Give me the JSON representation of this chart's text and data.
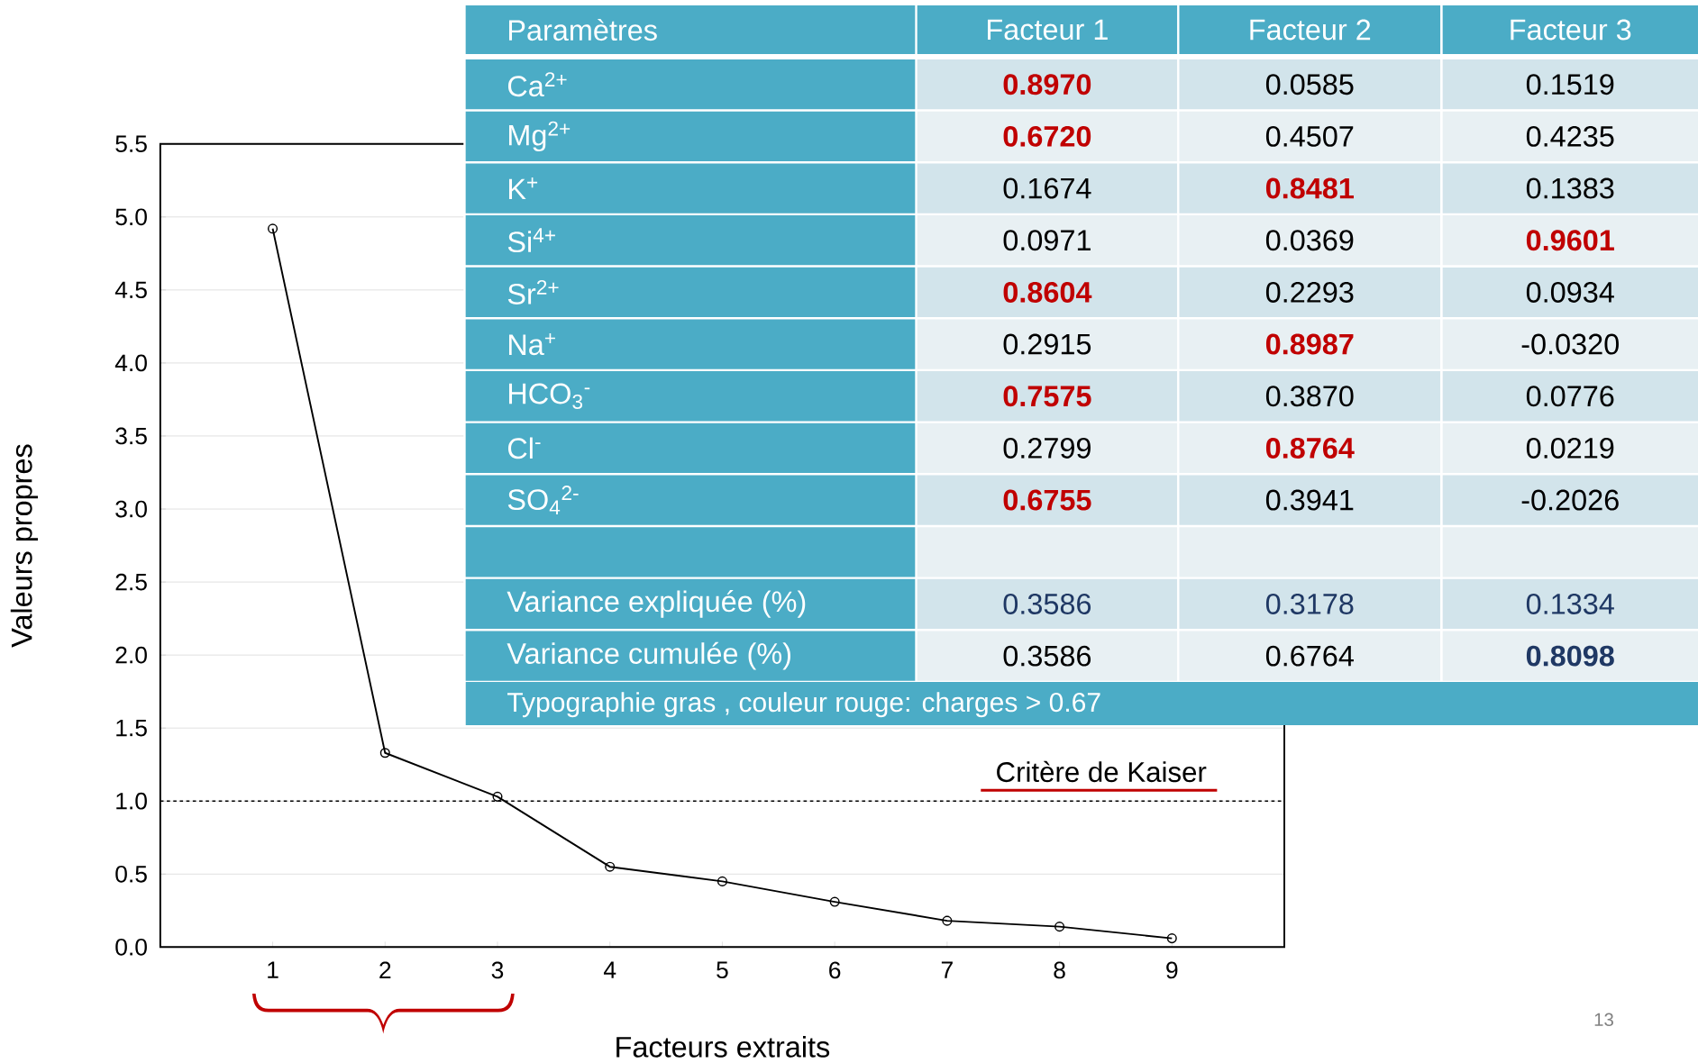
{
  "chart_data": [
    {
      "type": "line",
      "xlabel": "Facteurs extraits",
      "ylabel": "Valeurs propres",
      "x": [
        1,
        2,
        3,
        4,
        5,
        6,
        7,
        8,
        9
      ],
      "values": [
        4.92,
        1.33,
        1.03,
        0.55,
        0.45,
        0.31,
        0.18,
        0.14,
        0.06
      ],
      "color": "#000000",
      "marker": "circle",
      "line_style": "solid",
      "grid": "y",
      "xlim": [
        0,
        10
      ],
      "xticks": [
        1,
        2,
        3,
        4,
        5,
        6,
        7,
        8,
        9
      ],
      "ylim": [
        0,
        5.5
      ],
      "yticks": [
        {
          "value": 0,
          "label": "0.0"
        },
        {
          "value": 0.5,
          "label": "0.5"
        },
        {
          "value": 1,
          "label": "1.0"
        },
        {
          "value": 1.5,
          "label": "1.5"
        },
        {
          "value": 2,
          "label": "2.0"
        },
        {
          "value": 2.5,
          "label": "2.5"
        },
        {
          "value": 3,
          "label": "3.0"
        },
        {
          "value": 3.5,
          "label": "3.5"
        },
        {
          "value": 4,
          "label": "4.0"
        },
        {
          "value": 4.5,
          "label": "4.5"
        },
        {
          "value": 5,
          "label": "5.0"
        },
        {
          "value": 5.5,
          "label": "5.5"
        }
      ],
      "ref_lines": [
        {
          "axis": "y",
          "value": 1,
          "label": "Critère de Kaiser",
          "line_style": "dashed"
        }
      ]
    },
    {
      "type": "other",
      "annotations": [
        "Paramètres",
        "Facteur 1",
        "Facteur 2",
        "Facteur 3",
        "Ca$^{2+}$",
        "**0.8970**",
        "0.0585",
        "0.1519",
        "Mg$^{2+}$",
        "**0.6720**",
        "0.4507",
        "0.4235",
        "K$^{+}$",
        "0.1674",
        "**0.8481**",
        "0.1383",
        "Si$^{4+}$",
        "0.0971",
        "0.0369",
        "**0.9601**",
        "Sr$^{2+}$",
        "**0.8604**",
        "0.2293",
        "0.0934",
        "Na$^{+}$",
        "0.2915",
        "**0.8987**",
        "-0.0320",
        "HCO$_{3}$$^{-}$",
        "**0.7575**",
        "0.3870",
        "0.0776",
        "Cl$^{-}$",
        "0.2799",
        "**0.8764**",
        "0.0219",
        "SO$_{4}$$^{2-}$",
        "**0.6755**",
        "0.3941",
        "-0.2026",
        "Variance expliquée (%)",
        "0.3586",
        "0.3178",
        "0.1334",
        "Variance cumulée (%)",
        "0.3586",
        "0.6764",
        "**0.8098**",
        "Typographie gras , couleur rouge: charges > 0.67",
        "13"
      ]
    }
  ]
}
